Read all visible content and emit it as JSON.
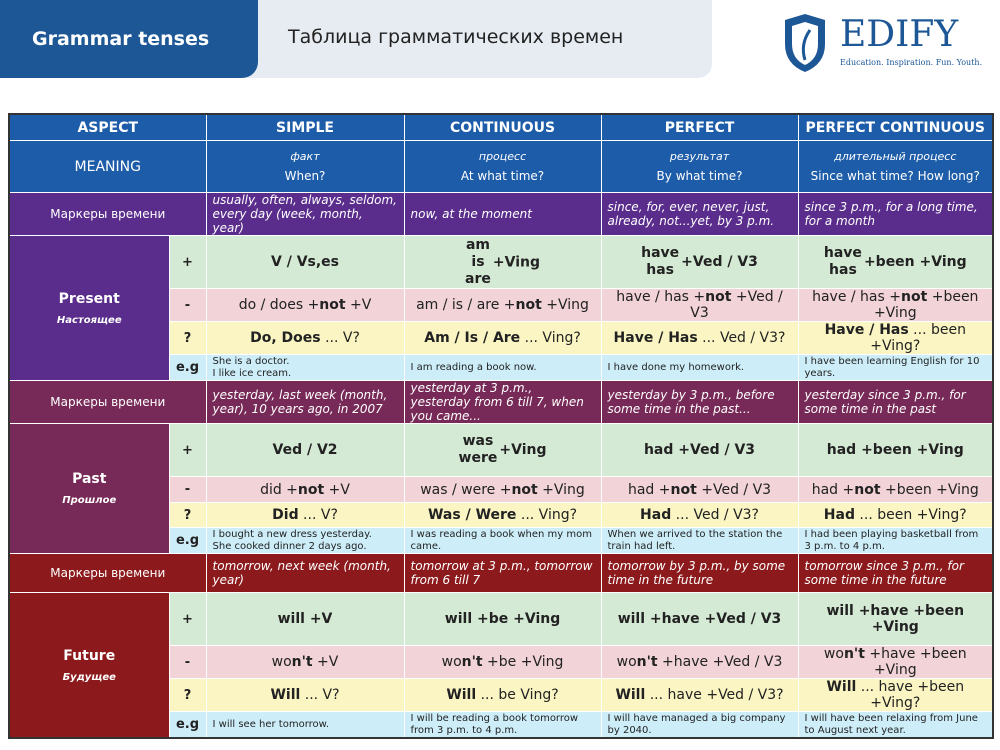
{
  "header": {
    "title": "Grammar tenses",
    "subtitle": "Таблица грамматических времен",
    "logo": {
      "name": "EDIFY",
      "tagline": "Education. Inspiration. Fun. Youth."
    }
  },
  "table": {
    "columns": [
      "ASPECT",
      "SIMPLE",
      "CONTINUOUS",
      "PERFECT",
      "PERFECT CONTINUOUS"
    ],
    "meaning": {
      "label": "MEANING",
      "cells": [
        {
          "ru": "факт",
          "en": "When?"
        },
        {
          "ru": "процесс",
          "en": "At what time?"
        },
        {
          "ru": "результат",
          "en": "By what time?"
        },
        {
          "ru": "длительный процесс",
          "en": "Since what time? How long?"
        }
      ]
    },
    "signs": [
      "+",
      "-",
      "?",
      "e.g"
    ],
    "sections": [
      {
        "name": "Present",
        "ru": "Настоящее",
        "color": "#5a2d8c",
        "markers_label": "Маркеры времени",
        "markers": [
          "usually, often, always, seldom, every day (week, month, year)",
          "now, at the moment",
          "since, for, ever, never, just, already, not...yet, by 3 p.m.",
          "since 3 p.m., for a long time, for a month"
        ],
        "rows": [
          [
            "V / Vs,es",
            {
              "stack": [
                "am",
                "is",
                "are"
              ],
              "text": "+Ving"
            },
            {
              "stack": [
                "have",
                "has"
              ],
              "text": "+Ved / V3"
            },
            {
              "stack": [
                "have",
                "has"
              ],
              "text": "+been +Ving"
            }
          ],
          [
            {
              "parts": [
                {
                  "text": "do / does +"
                },
                {
                  "text": "not",
                  "bold": true
                },
                {
                  "text": " +V"
                }
              ]
            },
            {
              "parts": [
                {
                  "text": "am / is / are +"
                },
                {
                  "text": "not",
                  "bold": true
                },
                {
                  "text": " +Ving"
                }
              ]
            },
            {
              "parts": [
                {
                  "text": "have / has +"
                },
                {
                  "text": "not",
                  "bold": true
                },
                {
                  "text": " +Ved / V3"
                }
              ]
            },
            {
              "parts": [
                {
                  "text": "have / has +"
                },
                {
                  "text": "not",
                  "bold": true
                },
                {
                  "text": " +been +Ving"
                }
              ]
            }
          ],
          [
            {
              "parts": [
                {
                  "text": "Do, Does",
                  "bold": true
                },
                {
                  "text": " ... V?"
                }
              ]
            },
            {
              "parts": [
                {
                  "text": "Am / Is / Are",
                  "bold": true
                },
                {
                  "text": " ... Ving?"
                }
              ]
            },
            {
              "parts": [
                {
                  "text": "Have / Has",
                  "bold": true
                },
                {
                  "text": " ... Ved / V3?"
                }
              ]
            },
            {
              "parts": [
                {
                  "text": "Have / Has",
                  "bold": true
                },
                {
                  "text": " ... been +Ving?"
                }
              ]
            }
          ],
          [
            {
              "lines": [
                "She is a doctor.",
                "I like ice cream."
              ]
            },
            "I am reading a book now.",
            "I have done my homework.",
            "I have been learning English for 10 years."
          ]
        ]
      },
      {
        "name": "Past",
        "ru": "Прошлое",
        "color": "#772a57",
        "markers_label": "Маркеры времени",
        "markers": [
          "yesterday, last week (month, year), 10 years ago, in 2007",
          "yesterday at 3 p.m., yesterday from 6 till 7, when you came...",
          "yesterday by 3 p.m., before some time in the past...",
          "yesterday since 3 p.m., for some time in the past"
        ],
        "rows": [
          [
            "Ved / V2",
            {
              "stack": [
                "was",
                "were"
              ],
              "text": "+Ving"
            },
            "had +Ved / V3",
            "had +been +Ving"
          ],
          [
            {
              "parts": [
                {
                  "text": "did +"
                },
                {
                  "text": "not",
                  "bold": true
                },
                {
                  "text": " +V"
                }
              ]
            },
            {
              "parts": [
                {
                  "text": "was / were +"
                },
                {
                  "text": "not",
                  "bold": true
                },
                {
                  "text": " +Ving"
                }
              ]
            },
            {
              "parts": [
                {
                  "text": "had +"
                },
                {
                  "text": "not",
                  "bold": true
                },
                {
                  "text": " +Ved / V3"
                }
              ]
            },
            {
              "parts": [
                {
                  "text": "had +"
                },
                {
                  "text": "not",
                  "bold": true
                },
                {
                  "text": " +been +Ving"
                }
              ]
            }
          ],
          [
            {
              "parts": [
                {
                  "text": "Did",
                  "bold": true
                },
                {
                  "text": " ... V?"
                }
              ]
            },
            {
              "parts": [
                {
                  "text": "Was / Were",
                  "bold": true
                },
                {
                  "text": " ... Ving?"
                }
              ]
            },
            {
              "parts": [
                {
                  "text": "Had",
                  "bold": true
                },
                {
                  "text": " ... Ved / V3?"
                }
              ]
            },
            {
              "parts": [
                {
                  "text": "Had",
                  "bold": true
                },
                {
                  "text": " ... been +Ving?"
                }
              ]
            }
          ],
          [
            {
              "lines": [
                "I bought a new dress yesterday.",
                "She cooked dinner 2 days ago."
              ]
            },
            "I was reading a book when my mom came.",
            "When we arrived to the station the train had left.",
            "I had been playing basketball from 3 p.m. to 4 p.m."
          ]
        ]
      },
      {
        "name": "Future",
        "ru": "Будущее",
        "color": "#8c1a1c",
        "markers_label": "Маркеры времени",
        "markers": [
          "tomorrow, next week (month, year)",
          "tomorrow at 3 p.m., tomorrow from 6 till 7",
          "tomorrow by 3 p.m., by some time in the future",
          "tomorrow since 3 p.m., for some time in the future"
        ],
        "rows": [
          [
            "will +V",
            "will +be +Ving",
            "will +have +Ved / V3",
            "will +have +been +Ving"
          ],
          [
            {
              "parts": [
                {
                  "text": "wo"
                },
                {
                  "text": "n't",
                  "bold": true
                },
                {
                  "text": " +V"
                }
              ]
            },
            {
              "parts": [
                {
                  "text": "wo"
                },
                {
                  "text": "n't",
                  "bold": true
                },
                {
                  "text": " +be +Ving"
                }
              ]
            },
            {
              "parts": [
                {
                  "text": "wo"
                },
                {
                  "text": "n't",
                  "bold": true
                },
                {
                  "text": " +have +Ved / V3"
                }
              ]
            },
            {
              "parts": [
                {
                  "text": "wo"
                },
                {
                  "text": "n't",
                  "bold": true
                },
                {
                  "text": " +have +been +Ving"
                }
              ]
            }
          ],
          [
            {
              "parts": [
                {
                  "text": "Will",
                  "bold": true
                },
                {
                  "text": " ... V?"
                }
              ]
            },
            {
              "parts": [
                {
                  "text": "Will",
                  "bold": true
                },
                {
                  "text": " ... be Ving?"
                }
              ]
            },
            {
              "parts": [
                {
                  "text": "Will",
                  "bold": true
                },
                {
                  "text": " ... have +Ved / V3?"
                }
              ]
            },
            {
              "parts": [
                {
                  "text": "Will",
                  "bold": true
                },
                {
                  "text": " ... have +been +Ving?"
                }
              ]
            }
          ],
          [
            "I will see her tomorrow.",
            "I will be reading a book tomorrow from 3 p.m. to 4 p.m.",
            "I will have managed a big company by 2040.",
            "I will have been relaxing from June to August next year."
          ]
        ]
      }
    ]
  }
}
